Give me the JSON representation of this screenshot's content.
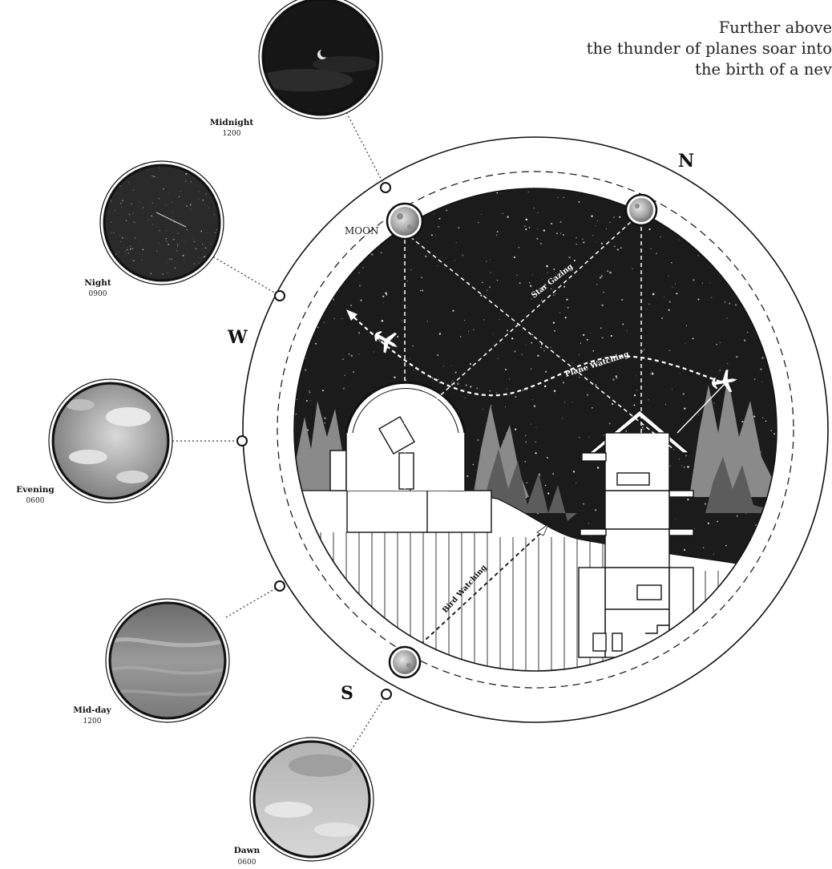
{
  "quote": {
    "line1": "Further above",
    "line2": "the thunder of planes soar into",
    "line3": "the birth of a nev"
  },
  "compass": {
    "north": "N",
    "west": "W",
    "south": "S"
  },
  "moon_label": "MOON",
  "activities": {
    "star_gazing": "Star Gazing",
    "plane_watching": "Plane Watching",
    "bird_watching": "Bird Watching"
  },
  "sky_phases": [
    {
      "name": "Midnight",
      "time": "1200",
      "tone": "night-moon"
    },
    {
      "name": "Night",
      "time": "0900",
      "tone": "night-stars"
    },
    {
      "name": "Evening",
      "time": "0600",
      "tone": "cloudy-grey"
    },
    {
      "name": "Mid-day",
      "time": "1200",
      "tone": "overcast"
    },
    {
      "name": "Dawn",
      "time": "0600",
      "tone": "pale-sky"
    }
  ],
  "colors": {
    "night_sky": "#1b1b1b",
    "trees_far": "#8a8a8a",
    "trees_near": "#5c5c5c",
    "ground": "#ffffff",
    "line": "#111111"
  }
}
